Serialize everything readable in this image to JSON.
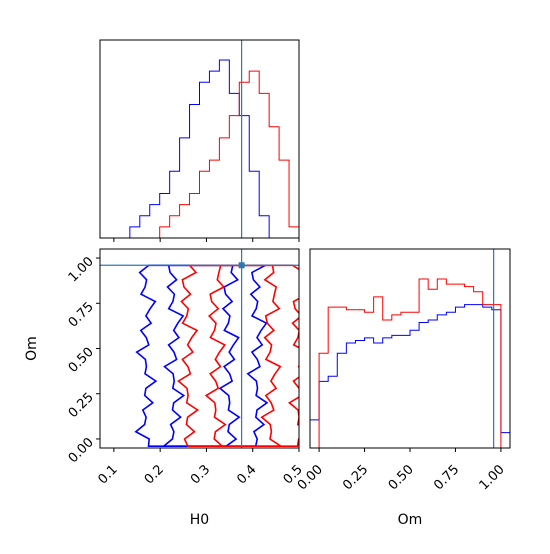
{
  "chart_data": [
    {
      "panel": "H0 marginal",
      "type": "histogram",
      "x_range": [
        0.07,
        0.5
      ],
      "y_ticks_visible": false,
      "truth": 0.376,
      "bin_edges": [
        0.07,
        0.0915,
        0.113,
        0.1345,
        0.156,
        0.1775,
        0.199,
        0.2205,
        0.242,
        0.2635,
        0.285,
        0.3065,
        0.328,
        0.3495,
        0.371,
        0.3925,
        0.414,
        0.4355,
        0.457,
        0.4785,
        0.5
      ],
      "series": [
        {
          "color": "#0000ff",
          "counts": [
            0,
            0,
            0,
            1,
            2,
            3,
            4,
            6,
            9,
            12,
            14,
            15,
            16,
            13,
            11,
            6,
            2,
            0,
            0,
            0
          ]
        },
        {
          "color": "#ff0000",
          "counts": [
            0,
            0,
            0,
            0,
            0,
            0,
            1,
            2,
            3,
            4,
            6,
            7,
            9,
            11,
            14,
            15,
            13,
            10,
            7,
            1
          ]
        }
      ]
    },
    {
      "panel": "H0 vs Om contours",
      "type": "contour",
      "x_range": [
        0.07,
        0.5
      ],
      "y_range": [
        -0.05,
        1.05
      ],
      "x_ticks": [
        "0.1",
        "0.2",
        "0.3",
        "0.4",
        "0.5"
      ],
      "y_ticks": [
        "0.00",
        "0.25",
        "0.50",
        "0.75",
        "1.00"
      ],
      "xlabel": "H0",
      "ylabel": "Om",
      "truth": {
        "x": 0.376,
        "y": 0.96
      },
      "series": [
        {
          "color": "#0000ff",
          "center_x": 0.29,
          "outer_half_width": 0.12,
          "inner_half_width": 0.06
        },
        {
          "color": "#ff0000",
          "center_x": 0.38,
          "outer_half_width": 0.12,
          "inner_half_width": 0.06
        }
      ]
    },
    {
      "panel": "Om marginal",
      "type": "histogram",
      "x_range": [
        -0.05,
        1.05
      ],
      "x_ticks": [
        "0.00",
        "0.25",
        "0.50",
        "0.75",
        "1.00"
      ],
      "xlabel": "Om",
      "truth": 0.96,
      "bin_edges": [
        -0.05,
        0.0,
        0.05,
        0.1,
        0.15,
        0.2,
        0.25,
        0.3,
        0.35,
        0.4,
        0.45,
        0.5,
        0.55,
        0.6,
        0.65,
        0.7,
        0.75,
        0.8,
        0.85,
        0.9,
        0.95,
        1.0,
        1.05
      ],
      "series": [
        {
          "color": "#0000ff",
          "counts": [
            11,
            26,
            28,
            37,
            41,
            42,
            43,
            41,
            43,
            44,
            44,
            46,
            49,
            50,
            52,
            53,
            55,
            56,
            56,
            55,
            54,
            6
          ]
        },
        {
          "color": "#ff0000",
          "counts": [
            0,
            37,
            55,
            55,
            54,
            54,
            53,
            59,
            50,
            52,
            53,
            53,
            66,
            62,
            66,
            64,
            64,
            63,
            61,
            56,
            56,
            0
          ]
        }
      ]
    }
  ]
}
